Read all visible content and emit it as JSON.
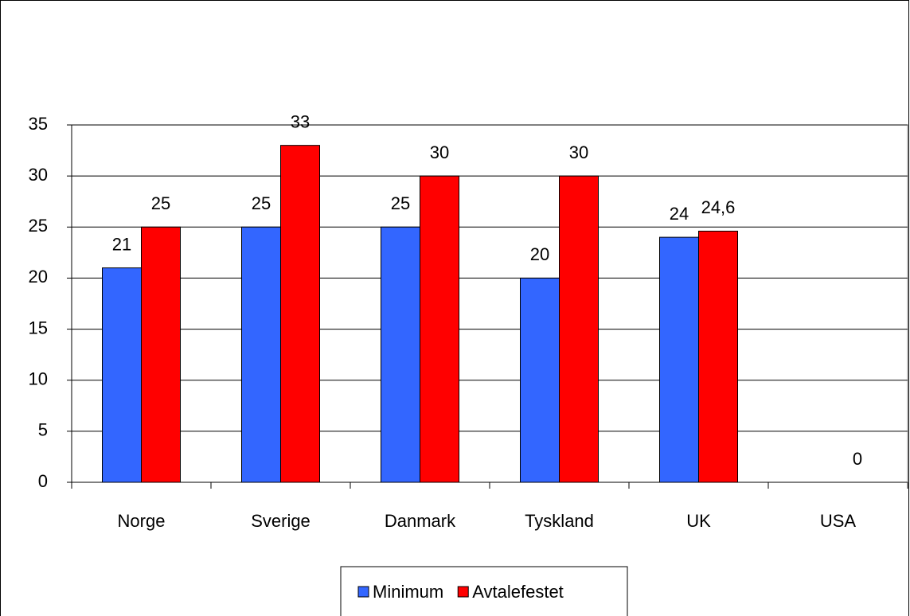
{
  "chart_data": {
    "type": "bar",
    "categories": [
      "Norge",
      "Sverige",
      "Danmark",
      "Tyskland",
      "UK",
      "USA"
    ],
    "series": [
      {
        "name": "Minimum",
        "color": "#3366ff",
        "values": [
          21,
          25,
          25,
          20,
          24,
          null
        ]
      },
      {
        "name": "Avtalefestet",
        "color": "#ff0000",
        "values": [
          25,
          33,
          30,
          30,
          24.6,
          0
        ],
        "value_labels": [
          "25",
          "33",
          "30",
          "30",
          "24,6",
          "0"
        ]
      }
    ],
    "ylim": [
      0,
      35
    ],
    "yticks": [
      0,
      5,
      10,
      15,
      20,
      25,
      30,
      35
    ],
    "grid": true,
    "legend": "bottom"
  }
}
